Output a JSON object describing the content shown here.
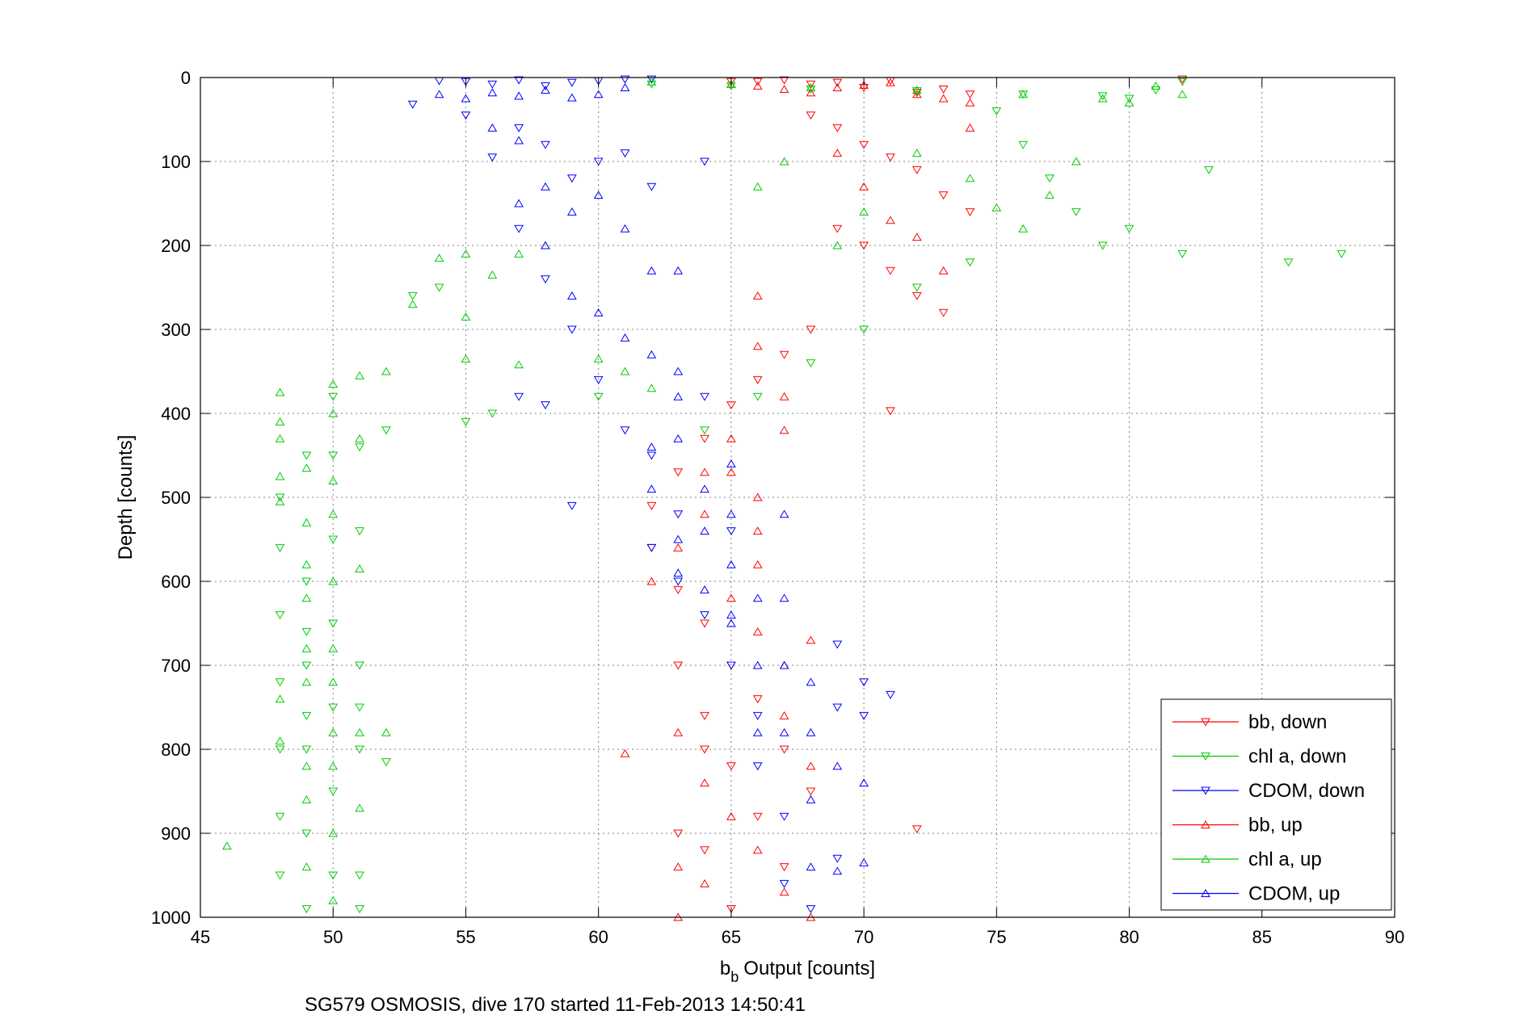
{
  "chart_data": {
    "type": "scatter",
    "title": "",
    "xlabel": "Output [counts]",
    "xlabel_prefix": "b",
    "xlabel_subscript": "b",
    "ylabel": "Depth [counts]",
    "caption": "SG579 OSMOSIS, dive 170 started 11-Feb-2013 14:50:41",
    "xlim": [
      45,
      90
    ],
    "ylim": [
      0,
      1000
    ],
    "y_reversed": true,
    "grid": true,
    "legend_position": "bottom-right",
    "xticks": [
      45,
      50,
      55,
      60,
      65,
      70,
      75,
      80,
      85,
      90
    ],
    "yticks": [
      0,
      100,
      200,
      300,
      400,
      500,
      600,
      700,
      800,
      900,
      1000
    ],
    "series": [
      {
        "name": "bb, down",
        "color": "#ff0000",
        "marker": "triangle-down",
        "points": [
          [
            65,
            5
          ],
          [
            66,
            5
          ],
          [
            67,
            3
          ],
          [
            68,
            8
          ],
          [
            69,
            6
          ],
          [
            70,
            12
          ],
          [
            71,
            4
          ],
          [
            72,
            18
          ],
          [
            73,
            14
          ],
          [
            74,
            20
          ],
          [
            82,
            2
          ],
          [
            68,
            45
          ],
          [
            69,
            60
          ],
          [
            70,
            80
          ],
          [
            71,
            95
          ],
          [
            72,
            110
          ],
          [
            73,
            140
          ],
          [
            74,
            160
          ],
          [
            69,
            180
          ],
          [
            70,
            200
          ],
          [
            71,
            230
          ],
          [
            72,
            260
          ],
          [
            73,
            280
          ],
          [
            68,
            300
          ],
          [
            67,
            330
          ],
          [
            66,
            360
          ],
          [
            65,
            390
          ],
          [
            64,
            430
          ],
          [
            63,
            470
          ],
          [
            62,
            510
          ],
          [
            62,
            560
          ],
          [
            63,
            610
          ],
          [
            64,
            650
          ],
          [
            65,
            700
          ],
          [
            66,
            740
          ],
          [
            67,
            800
          ],
          [
            68,
            850
          ],
          [
            72,
            895
          ],
          [
            71,
            397
          ],
          [
            64,
            800
          ],
          [
            63,
            700
          ],
          [
            64,
            760
          ],
          [
            65,
            820
          ],
          [
            66,
            880
          ],
          [
            67,
            940
          ],
          [
            65,
            990
          ],
          [
            64,
            920
          ],
          [
            63,
            900
          ]
        ]
      },
      {
        "name": "chl a, down",
        "color": "#00cc00",
        "marker": "triangle-down",
        "points": [
          [
            62,
            8
          ],
          [
            65,
            10
          ],
          [
            68,
            14
          ],
          [
            72,
            16
          ],
          [
            76,
            20
          ],
          [
            79,
            22
          ],
          [
            82,
            5
          ],
          [
            81,
            15
          ],
          [
            80,
            25
          ],
          [
            75,
            40
          ],
          [
            76,
            80
          ],
          [
            77,
            120
          ],
          [
            78,
            160
          ],
          [
            79,
            200
          ],
          [
            82,
            210
          ],
          [
            86,
            220
          ],
          [
            88,
            210
          ],
          [
            83,
            110
          ],
          [
            80,
            180
          ],
          [
            74,
            220
          ],
          [
            72,
            250
          ],
          [
            70,
            300
          ],
          [
            68,
            340
          ],
          [
            66,
            380
          ],
          [
            64,
            420
          ],
          [
            60,
            380
          ],
          [
            56,
            400
          ],
          [
            55,
            410
          ],
          [
            54,
            250
          ],
          [
            53,
            260
          ],
          [
            52,
            420
          ],
          [
            51,
            540
          ],
          [
            50,
            380
          ],
          [
            49,
            450
          ],
          [
            48,
            500
          ],
          [
            48,
            560
          ],
          [
            48,
            640
          ],
          [
            48,
            720
          ],
          [
            48,
            800
          ],
          [
            48,
            880
          ],
          [
            48,
            950
          ],
          [
            49,
            600
          ],
          [
            49,
            700
          ],
          [
            49,
            800
          ],
          [
            49,
            900
          ],
          [
            50,
            450
          ],
          [
            50,
            550
          ],
          [
            50,
            650
          ],
          [
            50,
            750
          ],
          [
            50,
            850
          ],
          [
            50,
            950
          ],
          [
            51,
            440
          ],
          [
            51,
            700
          ],
          [
            51,
            750
          ],
          [
            51,
            800
          ],
          [
            51,
            950
          ],
          [
            51,
            990
          ],
          [
            52,
            815
          ],
          [
            49,
            990
          ],
          [
            49,
            660
          ],
          [
            49,
            760
          ]
        ]
      },
      {
        "name": "CDOM, down",
        "color": "#0000ff",
        "marker": "triangle-down",
        "points": [
          [
            54,
            4
          ],
          [
            55,
            5
          ],
          [
            56,
            8
          ],
          [
            57,
            3
          ],
          [
            58,
            10
          ],
          [
            59,
            6
          ],
          [
            60,
            4
          ],
          [
            61,
            2
          ],
          [
            62,
            2
          ],
          [
            53,
            32
          ],
          [
            55,
            45
          ],
          [
            56,
            95
          ],
          [
            57,
            60
          ],
          [
            58,
            80
          ],
          [
            59,
            120
          ],
          [
            60,
            100
          ],
          [
            61,
            90
          ],
          [
            57,
            180
          ],
          [
            58,
            240
          ],
          [
            59,
            300
          ],
          [
            60,
            360
          ],
          [
            61,
            420
          ],
          [
            59,
            510
          ],
          [
            58,
            390
          ],
          [
            57,
            380
          ],
          [
            62,
            130
          ],
          [
            62,
            450
          ],
          [
            62,
            560
          ],
          [
            63,
            520
          ],
          [
            63,
            600
          ],
          [
            64,
            640
          ],
          [
            64,
            100
          ],
          [
            64,
            380
          ],
          [
            65,
            540
          ],
          [
            65,
            700
          ],
          [
            66,
            760
          ],
          [
            66,
            820
          ],
          [
            67,
            880
          ],
          [
            67,
            960
          ],
          [
            68,
            990
          ],
          [
            69,
            750
          ],
          [
            69,
            930
          ],
          [
            69,
            675
          ],
          [
            70,
            720
          ],
          [
            70,
            760
          ],
          [
            71,
            735
          ]
        ]
      },
      {
        "name": "bb, up",
        "color": "#ff0000",
        "marker": "triangle-up",
        "points": [
          [
            65,
            8
          ],
          [
            66,
            10
          ],
          [
            67,
            14
          ],
          [
            68,
            18
          ],
          [
            69,
            12
          ],
          [
            70,
            9
          ],
          [
            71,
            6
          ],
          [
            72,
            20
          ],
          [
            73,
            25
          ],
          [
            74,
            30
          ],
          [
            69,
            90
          ],
          [
            70,
            130
          ],
          [
            71,
            170
          ],
          [
            72,
            190
          ],
          [
            73,
            230
          ],
          [
            74,
            60
          ],
          [
            66,
            260
          ],
          [
            66,
            320
          ],
          [
            67,
            380
          ],
          [
            67,
            420
          ],
          [
            65,
            430
          ],
          [
            65,
            470
          ],
          [
            66,
            500
          ],
          [
            66,
            540
          ],
          [
            66,
            580
          ],
          [
            65,
            620
          ],
          [
            66,
            660
          ],
          [
            67,
            700
          ],
          [
            67,
            760
          ],
          [
            68,
            820
          ],
          [
            68,
            670
          ],
          [
            64,
            470
          ],
          [
            64,
            520
          ],
          [
            63,
            560
          ],
          [
            62,
            600
          ],
          [
            61,
            805
          ],
          [
            63,
            780
          ],
          [
            64,
            840
          ],
          [
            65,
            880
          ],
          [
            66,
            920
          ],
          [
            67,
            970
          ],
          [
            68,
            1000
          ],
          [
            63,
            1000
          ],
          [
            64,
            960
          ],
          [
            63,
            940
          ]
        ]
      },
      {
        "name": "chl a, up",
        "color": "#00cc00",
        "marker": "triangle-up",
        "points": [
          [
            62,
            5
          ],
          [
            65,
            8
          ],
          [
            68,
            12
          ],
          [
            72,
            15
          ],
          [
            76,
            20
          ],
          [
            79,
            25
          ],
          [
            82,
            20
          ],
          [
            81,
            10
          ],
          [
            80,
            30
          ],
          [
            78,
            100
          ],
          [
            77,
            140
          ],
          [
            76,
            180
          ],
          [
            75,
            155
          ],
          [
            74,
            120
          ],
          [
            72,
            90
          ],
          [
            70,
            160
          ],
          [
            69,
            200
          ],
          [
            66,
            130
          ],
          [
            67,
            100
          ],
          [
            54,
            215
          ],
          [
            55,
            210
          ],
          [
            56,
            235
          ],
          [
            57,
            210
          ],
          [
            58,
            200
          ],
          [
            55,
            285
          ],
          [
            55,
            335
          ],
          [
            57,
            342
          ],
          [
            60,
            335
          ],
          [
            61,
            350
          ],
          [
            62,
            370
          ],
          [
            52,
            350
          ],
          [
            51,
            355
          ],
          [
            51,
            585
          ],
          [
            50,
            365
          ],
          [
            49,
            465
          ],
          [
            48,
            375
          ],
          [
            48,
            410
          ],
          [
            48,
            430
          ],
          [
            48,
            475
          ],
          [
            48,
            505
          ],
          [
            48,
            740
          ],
          [
            48,
            790
          ],
          [
            46,
            915
          ],
          [
            49,
            530
          ],
          [
            49,
            580
          ],
          [
            49,
            620
          ],
          [
            49,
            680
          ],
          [
            49,
            720
          ],
          [
            49,
            820
          ],
          [
            49,
            860
          ],
          [
            49,
            940
          ],
          [
            50,
            400
          ],
          [
            50,
            480
          ],
          [
            50,
            520
          ],
          [
            50,
            600
          ],
          [
            50,
            680
          ],
          [
            50,
            720
          ],
          [
            50,
            780
          ],
          [
            50,
            820
          ],
          [
            50,
            900
          ],
          [
            50,
            980
          ],
          [
            51,
            430
          ],
          [
            51,
            870
          ],
          [
            51,
            780
          ],
          [
            52,
            780
          ],
          [
            53,
            270
          ]
        ]
      },
      {
        "name": "CDOM, up",
        "color": "#0000ff",
        "marker": "triangle-up",
        "points": [
          [
            54,
            20
          ],
          [
            55,
            25
          ],
          [
            56,
            18
          ],
          [
            57,
            22
          ],
          [
            58,
            15
          ],
          [
            59,
            24
          ],
          [
            60,
            20
          ],
          [
            61,
            12
          ],
          [
            56,
            60
          ],
          [
            57,
            75
          ],
          [
            58,
            130
          ],
          [
            59,
            160
          ],
          [
            60,
            140
          ],
          [
            61,
            180
          ],
          [
            62,
            230
          ],
          [
            57,
            150
          ],
          [
            58,
            200
          ],
          [
            59,
            260
          ],
          [
            60,
            280
          ],
          [
            61,
            310
          ],
          [
            62,
            330
          ],
          [
            63,
            350
          ],
          [
            63,
            380
          ],
          [
            63,
            430
          ],
          [
            62,
            440
          ],
          [
            62,
            490
          ],
          [
            63,
            550
          ],
          [
            63,
            590
          ],
          [
            64,
            490
          ],
          [
            64,
            540
          ],
          [
            64,
            610
          ],
          [
            65,
            460
          ],
          [
            65,
            520
          ],
          [
            65,
            580
          ],
          [
            65,
            640
          ],
          [
            66,
            620
          ],
          [
            66,
            700
          ],
          [
            66,
            780
          ],
          [
            67,
            520
          ],
          [
            67,
            620
          ],
          [
            67,
            700
          ],
          [
            67,
            780
          ],
          [
            68,
            720
          ],
          [
            68,
            780
          ],
          [
            68,
            860
          ],
          [
            68,
            940
          ],
          [
            69,
            820
          ],
          [
            69,
            945
          ],
          [
            70,
            840
          ],
          [
            70,
            935
          ],
          [
            63,
            230
          ],
          [
            65,
            650
          ]
        ]
      }
    ]
  }
}
